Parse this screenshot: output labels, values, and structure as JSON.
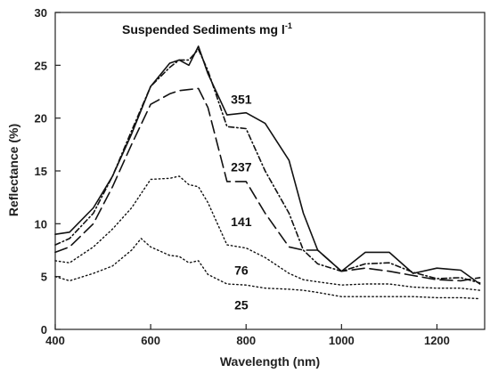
{
  "chart_data": {
    "type": "line",
    "title": "Suspended Sediments mg l",
    "title_superscript": "-1",
    "xlabel": "Wavelength (nm)",
    "ylabel": "Reflectance (%)",
    "xlim": [
      400,
      1300
    ],
    "ylim": [
      0,
      30
    ],
    "xticks": [
      400,
      600,
      800,
      1000,
      1200
    ],
    "yticks": [
      0,
      5,
      10,
      15,
      20,
      25,
      30
    ],
    "grid": false,
    "legend": "inline labels",
    "series": [
      {
        "name": "351",
        "style": "solid",
        "color": "#111111",
        "x": [
          400,
          430,
          480,
          520,
          560,
          600,
          640,
          660,
          680,
          700,
          720,
          760,
          800,
          840,
          890,
          920,
          950,
          1000,
          1050,
          1100,
          1150,
          1200,
          1250,
          1290
        ],
        "y": [
          9,
          9.2,
          11.5,
          14.5,
          18.5,
          23,
          25.2,
          25.5,
          25,
          26.8,
          24.2,
          20.3,
          20.5,
          19.5,
          16,
          11,
          7.5,
          5.5,
          7.3,
          7.3,
          5.3,
          5.8,
          5.6,
          4.3
        ]
      },
      {
        "name": "237",
        "style": "dot-dash",
        "color": "#111111",
        "x": [
          400,
          430,
          480,
          520,
          560,
          600,
          640,
          660,
          680,
          700,
          720,
          760,
          800,
          840,
          890,
          920,
          950,
          1000,
          1050,
          1100,
          1150,
          1200,
          1250,
          1290
        ],
        "y": [
          8,
          8.6,
          11,
          14.5,
          18.8,
          23,
          24.8,
          25.5,
          25.5,
          26.5,
          24.5,
          19.2,
          19,
          15,
          11,
          7.5,
          6.2,
          5.5,
          6.2,
          6.3,
          5.4,
          4.8,
          4.9,
          4.4
        ]
      },
      {
        "name": "141",
        "style": "dashed",
        "color": "#111111",
        "x": [
          400,
          430,
          480,
          520,
          560,
          600,
          640,
          660,
          680,
          700,
          720,
          760,
          800,
          840,
          890,
          920,
          950,
          1000,
          1050,
          1100,
          1150,
          1200,
          1250,
          1290
        ],
        "y": [
          7.3,
          7.8,
          10,
          13.5,
          17.5,
          21.3,
          22.3,
          22.6,
          22.7,
          22.8,
          21,
          14,
          14,
          11,
          7.8,
          7.5,
          7.5,
          5.5,
          5.8,
          5.5,
          5.1,
          4.7,
          4.6,
          4.9
        ]
      },
      {
        "name": "76",
        "style": "dotted",
        "color": "#111111",
        "x": [
          400,
          430,
          480,
          520,
          560,
          600,
          640,
          660,
          680,
          700,
          720,
          760,
          800,
          840,
          890,
          920,
          950,
          1000,
          1050,
          1100,
          1150,
          1200,
          1250,
          1290
        ],
        "y": [
          6.5,
          6.3,
          7.8,
          9.5,
          11.5,
          14.2,
          14.3,
          14.5,
          13.7,
          13.5,
          12,
          8,
          7.7,
          6.8,
          5.3,
          4.7,
          4.5,
          4.2,
          4.3,
          4.3,
          4,
          3.9,
          3.9,
          3.7
        ]
      },
      {
        "name": "25",
        "style": "dotted",
        "color": "#111111",
        "x": [
          400,
          430,
          480,
          520,
          560,
          580,
          600,
          640,
          660,
          680,
          700,
          720,
          760,
          800,
          840,
          890,
          920,
          950,
          1000,
          1050,
          1100,
          1150,
          1200,
          1250,
          1290
        ],
        "y": [
          5,
          4.6,
          5.3,
          6,
          7.5,
          8.6,
          7.8,
          7,
          6.9,
          6.3,
          6.5,
          5.2,
          4.3,
          4.2,
          3.9,
          3.8,
          3.7,
          3.5,
          3.1,
          3.1,
          3.1,
          3.1,
          3,
          3,
          2.9
        ]
      }
    ],
    "series_label_positions": [
      {
        "name": "351",
        "x": 790,
        "y": 21.8
      },
      {
        "name": "237",
        "x": 790,
        "y": 15.4
      },
      {
        "name": "141",
        "x": 790,
        "y": 10.2
      },
      {
        "name": "76",
        "x": 790,
        "y": 5.6
      },
      {
        "name": "25",
        "x": 790,
        "y": 2.3
      }
    ]
  }
}
